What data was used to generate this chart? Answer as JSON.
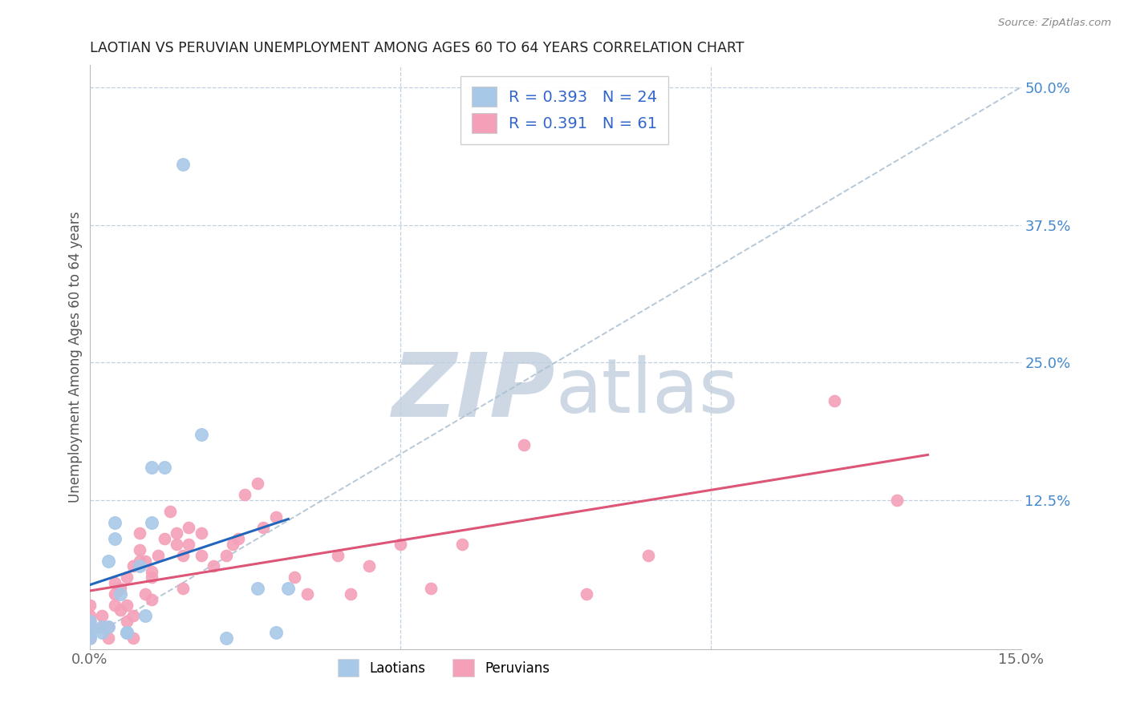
{
  "title": "LAOTIAN VS PERUVIAN UNEMPLOYMENT AMONG AGES 60 TO 64 YEARS CORRELATION CHART",
  "source": "Source: ZipAtlas.com",
  "ylabel": "Unemployment Among Ages 60 to 64 years",
  "xlim": [
    0.0,
    0.15
  ],
  "ylim": [
    -0.01,
    0.52
  ],
  "laotian_color": "#a8c8e8",
  "laotian_line_color": "#2266bb",
  "peruvian_color": "#f4a0b8",
  "peruvian_line_color": "#dd5577",
  "diagonal_line_color": "#aabfd0",
  "R_laotian": 0.393,
  "N_laotian": 24,
  "R_peruvian": 0.391,
  "N_peruvian": 61,
  "laotian_x": [
    0.0,
    0.0,
    0.0,
    0.0,
    0.002,
    0.002,
    0.003,
    0.003,
    0.004,
    0.004,
    0.005,
    0.006,
    0.006,
    0.008,
    0.009,
    0.01,
    0.01,
    0.012,
    0.015,
    0.018,
    0.022,
    0.027,
    0.03,
    0.032
  ],
  "laotian_y": [
    0.0,
    0.005,
    0.01,
    0.015,
    0.005,
    0.01,
    0.07,
    0.01,
    0.09,
    0.105,
    0.04,
    0.005,
    0.005,
    0.065,
    0.02,
    0.105,
    0.155,
    0.155,
    0.43,
    0.185,
    0.0,
    0.045,
    0.005,
    0.045
  ],
  "peruvian_x": [
    0.0,
    0.0,
    0.0,
    0.0,
    0.0,
    0.0,
    0.002,
    0.002,
    0.003,
    0.003,
    0.004,
    0.004,
    0.004,
    0.005,
    0.005,
    0.006,
    0.006,
    0.006,
    0.007,
    0.007,
    0.007,
    0.008,
    0.008,
    0.008,
    0.009,
    0.009,
    0.01,
    0.01,
    0.01,
    0.011,
    0.012,
    0.013,
    0.014,
    0.014,
    0.015,
    0.015,
    0.016,
    0.016,
    0.018,
    0.018,
    0.02,
    0.022,
    0.023,
    0.024,
    0.025,
    0.027,
    0.028,
    0.03,
    0.033,
    0.035,
    0.04,
    0.042,
    0.045,
    0.05,
    0.055,
    0.06,
    0.07,
    0.08,
    0.09,
    0.12,
    0.13
  ],
  "peruvian_y": [
    0.0,
    0.0,
    0.01,
    0.015,
    0.02,
    0.03,
    0.01,
    0.02,
    0.0,
    0.01,
    0.03,
    0.04,
    0.05,
    0.025,
    0.045,
    0.015,
    0.03,
    0.055,
    0.0,
    0.02,
    0.065,
    0.07,
    0.08,
    0.095,
    0.04,
    0.07,
    0.035,
    0.055,
    0.06,
    0.075,
    0.09,
    0.115,
    0.085,
    0.095,
    0.045,
    0.075,
    0.085,
    0.1,
    0.075,
    0.095,
    0.065,
    0.075,
    0.085,
    0.09,
    0.13,
    0.14,
    0.1,
    0.11,
    0.055,
    0.04,
    0.075,
    0.04,
    0.065,
    0.085,
    0.045,
    0.085,
    0.175,
    0.04,
    0.075,
    0.215,
    0.125
  ],
  "background_color": "#ffffff",
  "grid_color": "#c0d0e0",
  "watermark_color": "#cdd8e4"
}
